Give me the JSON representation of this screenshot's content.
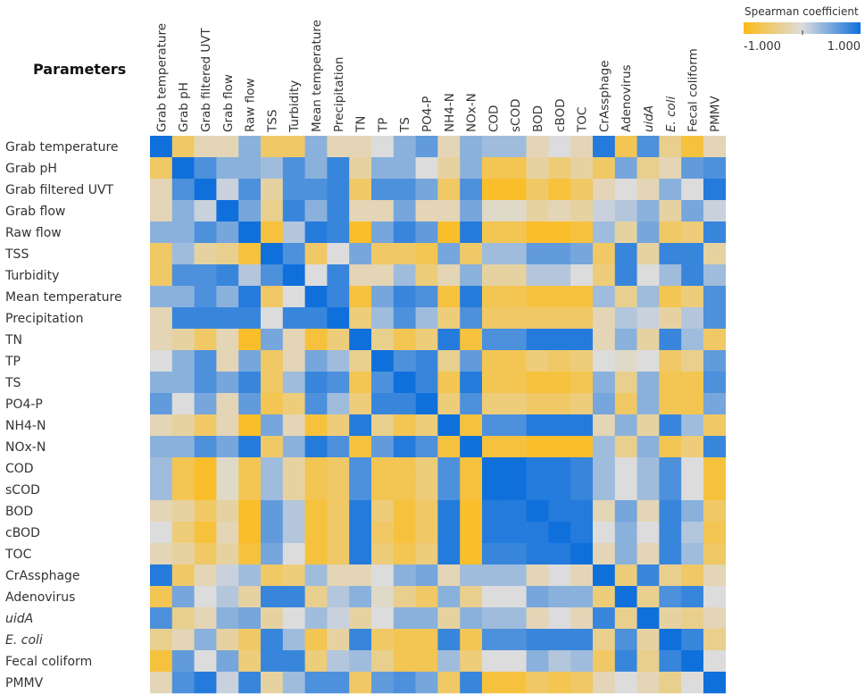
{
  "chart_data": {
    "type": "heatmap",
    "row_header": "Parameters",
    "legend": {
      "title": "Spearman coefficient",
      "min_label": "-1.000",
      "max_label": "1.000",
      "min": -1,
      "max": 1,
      "colors": [
        "#fdbb17",
        "#dcdcdc",
        "#0f70dc"
      ]
    },
    "parameters": [
      "Grab temperature",
      "Grab pH",
      "Grab filtered UVT",
      "Grab flow",
      "Raw flow",
      "TSS",
      "Turbidity",
      "Mean temperature",
      "Precipitation",
      "TN",
      "TP",
      "TS",
      "PO4-P",
      "NH4-N",
      "NOx-N",
      "COD",
      "sCOD",
      "BOD",
      "cBOD",
      "TOC",
      "CrAssphage",
      "Adenovirus",
      "uidA",
      "E. coli",
      "Fecal coliform",
      "PMMV"
    ],
    "italic_parameters": [
      "uidA",
      "E. coli"
    ],
    "values": [
      [
        1.0,
        -0.6,
        -0.2,
        -0.2,
        0.4,
        -0.6,
        -0.6,
        0.4,
        -0.2,
        -0.2,
        0.0,
        0.4,
        0.6,
        -0.2,
        0.4,
        0.3,
        0.3,
        -0.2,
        0.0,
        -0.2,
        0.9,
        -0.7,
        0.7,
        -0.4,
        -0.8,
        -0.2
      ],
      [
        -0.6,
        1.0,
        0.7,
        0.4,
        0.4,
        0.3,
        0.7,
        0.4,
        0.8,
        -0.3,
        0.4,
        0.4,
        0.0,
        -0.3,
        0.4,
        -0.7,
        -0.7,
        -0.3,
        -0.5,
        -0.3,
        -0.6,
        0.5,
        -0.4,
        -0.2,
        0.6,
        0.7
      ],
      [
        -0.2,
        0.7,
        1.0,
        0.1,
        0.7,
        -0.3,
        0.7,
        0.7,
        0.8,
        -0.6,
        0.7,
        0.7,
        0.5,
        -0.6,
        0.7,
        -0.9,
        -0.9,
        -0.6,
        -0.8,
        -0.6,
        -0.2,
        0.0,
        -0.2,
        0.4,
        0.0,
        0.9
      ],
      [
        -0.2,
        0.4,
        0.1,
        1.0,
        0.5,
        -0.4,
        0.8,
        0.4,
        0.8,
        -0.2,
        -0.2,
        0.5,
        -0.2,
        -0.2,
        0.5,
        -0.1,
        -0.1,
        -0.3,
        -0.2,
        -0.3,
        0.1,
        0.2,
        0.4,
        -0.3,
        0.5,
        0.1
      ],
      [
        0.4,
        0.4,
        0.7,
        0.5,
        1.0,
        -0.8,
        0.2,
        0.9,
        0.8,
        -0.9,
        0.5,
        0.8,
        0.6,
        -0.9,
        0.9,
        -0.7,
        -0.7,
        -0.9,
        -0.9,
        -0.8,
        0.3,
        -0.3,
        0.5,
        -0.6,
        -0.5,
        0.8
      ],
      [
        -0.6,
        0.3,
        -0.3,
        -0.4,
        -0.8,
        1.0,
        0.7,
        -0.6,
        0.0,
        0.5,
        -0.6,
        -0.6,
        -0.7,
        0.5,
        -0.6,
        0.3,
        0.3,
        0.6,
        0.6,
        0.5,
        -0.6,
        0.8,
        -0.3,
        0.8,
        0.8,
        -0.3
      ],
      [
        -0.6,
        0.7,
        0.7,
        0.8,
        0.2,
        0.7,
        1.0,
        0.0,
        0.8,
        -0.2,
        -0.2,
        0.3,
        -0.5,
        -0.2,
        0.4,
        -0.3,
        -0.3,
        0.2,
        0.2,
        0.0,
        -0.5,
        0.8,
        0.0,
        0.3,
        0.8,
        0.3
      ],
      [
        0.4,
        0.4,
        0.7,
        0.4,
        0.9,
        -0.6,
        0.0,
        1.0,
        0.8,
        -0.8,
        0.5,
        0.8,
        0.7,
        -0.8,
        0.9,
        -0.7,
        -0.7,
        -0.8,
        -0.8,
        -0.8,
        0.3,
        -0.4,
        0.3,
        -0.7,
        -0.5,
        0.7
      ],
      [
        -0.2,
        0.8,
        0.8,
        0.8,
        0.8,
        0.0,
        0.8,
        0.8,
        1.0,
        -0.5,
        0.3,
        0.7,
        0.3,
        -0.5,
        0.7,
        -0.6,
        -0.6,
        -0.6,
        -0.6,
        -0.6,
        -0.2,
        0.2,
        0.1,
        -0.3,
        0.2,
        0.7
      ],
      [
        -0.2,
        -0.3,
        -0.6,
        -0.2,
        -0.9,
        0.5,
        -0.2,
        -0.8,
        -0.5,
        1.0,
        -0.4,
        -0.7,
        -0.5,
        0.9,
        -0.8,
        0.7,
        0.7,
        0.9,
        0.9,
        0.9,
        -0.2,
        0.4,
        -0.3,
        0.8,
        0.3,
        -0.6
      ],
      [
        0.0,
        0.4,
        0.7,
        -0.2,
        0.5,
        -0.6,
        -0.2,
        0.5,
        0.3,
        -0.4,
        1.0,
        0.7,
        0.8,
        -0.4,
        0.6,
        -0.7,
        -0.7,
        -0.5,
        -0.6,
        -0.5,
        0.0,
        -0.1,
        0.0,
        -0.6,
        -0.4,
        0.6
      ],
      [
        0.4,
        0.4,
        0.7,
        0.5,
        0.8,
        -0.6,
        0.3,
        0.8,
        0.7,
        -0.7,
        0.7,
        1.0,
        0.8,
        -0.7,
        0.9,
        -0.7,
        -0.7,
        -0.8,
        -0.8,
        -0.7,
        0.4,
        -0.4,
        0.4,
        -0.7,
        -0.7,
        0.7
      ],
      [
        0.6,
        0.0,
        0.5,
        -0.2,
        0.6,
        -0.7,
        -0.5,
        0.7,
        0.3,
        -0.5,
        0.8,
        0.8,
        1.0,
        -0.5,
        0.7,
        -0.5,
        -0.5,
        -0.6,
        -0.6,
        -0.5,
        0.5,
        -0.6,
        0.4,
        -0.7,
        -0.7,
        0.5
      ],
      [
        -0.2,
        -0.3,
        -0.6,
        -0.2,
        -0.9,
        0.5,
        -0.2,
        -0.8,
        -0.5,
        0.9,
        -0.4,
        -0.7,
        -0.5,
        1.0,
        -0.8,
        0.7,
        0.7,
        0.9,
        0.9,
        0.9,
        -0.2,
        0.4,
        -0.3,
        0.8,
        0.3,
        -0.6
      ],
      [
        0.4,
        0.4,
        0.7,
        0.5,
        0.9,
        -0.6,
        0.4,
        0.9,
        0.7,
        -0.8,
        0.6,
        0.9,
        0.7,
        -0.8,
        1.0,
        -0.8,
        -0.8,
        -0.9,
        -0.9,
        -0.9,
        0.3,
        -0.4,
        0.4,
        -0.7,
        -0.5,
        0.8
      ],
      [
        0.3,
        -0.7,
        -0.9,
        -0.1,
        -0.7,
        0.3,
        -0.3,
        -0.7,
        -0.6,
        0.7,
        -0.7,
        -0.7,
        -0.5,
        0.7,
        -0.8,
        1.0,
        1.0,
        0.9,
        0.9,
        0.8,
        0.3,
        0.0,
        0.3,
        0.7,
        0.0,
        -0.8
      ],
      [
        0.3,
        -0.7,
        -0.9,
        -0.1,
        -0.7,
        0.3,
        -0.3,
        -0.7,
        -0.6,
        0.7,
        -0.7,
        -0.7,
        -0.5,
        0.7,
        -0.8,
        1.0,
        1.0,
        0.9,
        0.9,
        0.8,
        0.3,
        0.0,
        0.3,
        0.7,
        0.0,
        -0.8
      ],
      [
        -0.2,
        -0.3,
        -0.6,
        -0.3,
        -0.9,
        0.6,
        0.2,
        -0.8,
        -0.6,
        0.9,
        -0.5,
        -0.8,
        -0.6,
        0.9,
        -0.9,
        0.9,
        0.9,
        1.0,
        0.9,
        0.9,
        -0.2,
        0.5,
        -0.2,
        0.8,
        0.4,
        -0.6
      ],
      [
        0.0,
        -0.5,
        -0.8,
        -0.2,
        -0.9,
        0.6,
        0.2,
        -0.8,
        -0.6,
        0.9,
        -0.6,
        -0.8,
        -0.6,
        0.9,
        -0.9,
        0.9,
        0.9,
        0.9,
        1.0,
        0.9,
        0.0,
        0.4,
        0.0,
        0.8,
        0.2,
        -0.7
      ],
      [
        -0.2,
        -0.3,
        -0.6,
        -0.3,
        -0.8,
        0.5,
        0.0,
        -0.8,
        -0.6,
        0.9,
        -0.5,
        -0.7,
        -0.5,
        0.9,
        -0.9,
        0.8,
        0.8,
        0.9,
        0.9,
        1.0,
        -0.2,
        0.4,
        -0.2,
        0.8,
        0.3,
        -0.6
      ],
      [
        0.9,
        -0.6,
        -0.2,
        0.1,
        0.3,
        -0.6,
        -0.5,
        0.3,
        -0.2,
        -0.2,
        0.0,
        0.4,
        0.5,
        -0.2,
        0.3,
        0.3,
        0.3,
        -0.2,
        0.0,
        -0.2,
        1.0,
        -0.5,
        0.8,
        -0.4,
        -0.6,
        -0.2
      ],
      [
        -0.7,
        0.5,
        0.0,
        0.2,
        -0.3,
        0.8,
        0.8,
        -0.4,
        0.2,
        0.4,
        -0.1,
        -0.4,
        -0.6,
        0.4,
        -0.4,
        0.0,
        0.0,
        0.5,
        0.4,
        0.4,
        -0.5,
        1.0,
        -0.4,
        0.7,
        0.8,
        0.0
      ],
      [
        0.7,
        -0.4,
        -0.2,
        0.4,
        0.5,
        -0.3,
        0.0,
        0.3,
        0.1,
        -0.3,
        0.0,
        0.4,
        0.4,
        -0.3,
        0.4,
        0.3,
        0.3,
        -0.2,
        0.0,
        -0.2,
        0.8,
        -0.4,
        1.0,
        -0.3,
        -0.4,
        -0.2
      ],
      [
        -0.4,
        -0.2,
        0.4,
        -0.3,
        -0.6,
        0.8,
        0.3,
        -0.7,
        -0.3,
        0.8,
        -0.6,
        -0.7,
        -0.7,
        0.8,
        -0.7,
        0.7,
        0.7,
        0.8,
        0.8,
        0.8,
        -0.4,
        0.7,
        -0.3,
        1.0,
        0.8,
        -0.4
      ],
      [
        -0.8,
        0.6,
        0.0,
        0.5,
        -0.5,
        0.8,
        0.8,
        -0.5,
        0.2,
        0.3,
        -0.4,
        -0.7,
        -0.7,
        0.3,
        -0.5,
        0.0,
        0.0,
        0.4,
        0.2,
        0.3,
        -0.6,
        0.8,
        -0.4,
        0.8,
        1.0,
        0.0
      ],
      [
        -0.2,
        0.7,
        0.9,
        0.1,
        0.8,
        -0.3,
        0.3,
        0.7,
        0.7,
        -0.6,
        0.6,
        0.7,
        0.5,
        -0.6,
        0.8,
        -0.8,
        -0.8,
        -0.6,
        -0.7,
        -0.6,
        -0.2,
        0.0,
        -0.2,
        -0.4,
        0.0,
        1.0
      ]
    ]
  }
}
